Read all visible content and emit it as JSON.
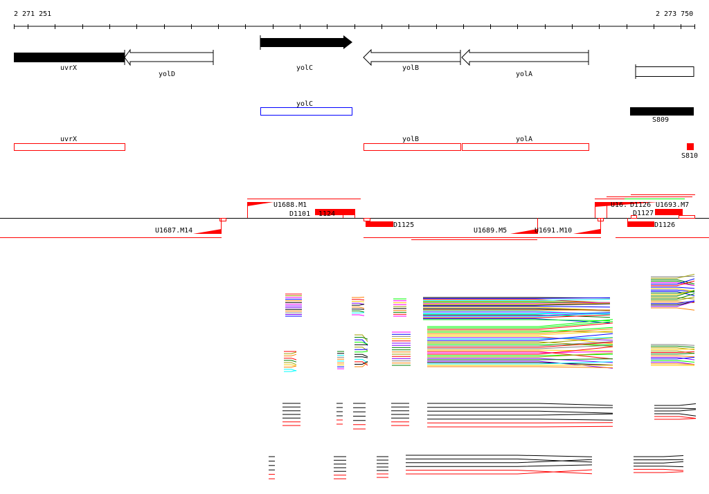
{
  "ruler": {
    "start": "2 271 251",
    "end": "2 273 750"
  },
  "genes": {
    "uvrX": "uvrX",
    "yolD": "yolD",
    "yolC": "yolC",
    "yolB": "yolB",
    "yolA": "yolA"
  },
  "track2": {
    "yolC": "yolC",
    "S809": "S809"
  },
  "track3": {
    "uvrX": "uvrX",
    "yolB": "yolB",
    "yolA": "yolA",
    "S810": "S810"
  },
  "features": {
    "U1687_M14": "U1687.M14",
    "U1688_M1": "U1688.M1",
    "D1101_1124": "D1101",
    "D1124": "1124",
    "D1125": "D1125",
    "U1689_M5": "U1689.M5",
    "U1691_M10": "U1691.M10",
    "U1692": "U16.",
    "D1126b": "D1126",
    "U1693_M7": "U1693.M7",
    "D1127": "D1127",
    "D1126": "D1126"
  },
  "colors": {
    "accent": "#ff0000",
    "blue": "#0000ff",
    "green": "#00ff00"
  }
}
